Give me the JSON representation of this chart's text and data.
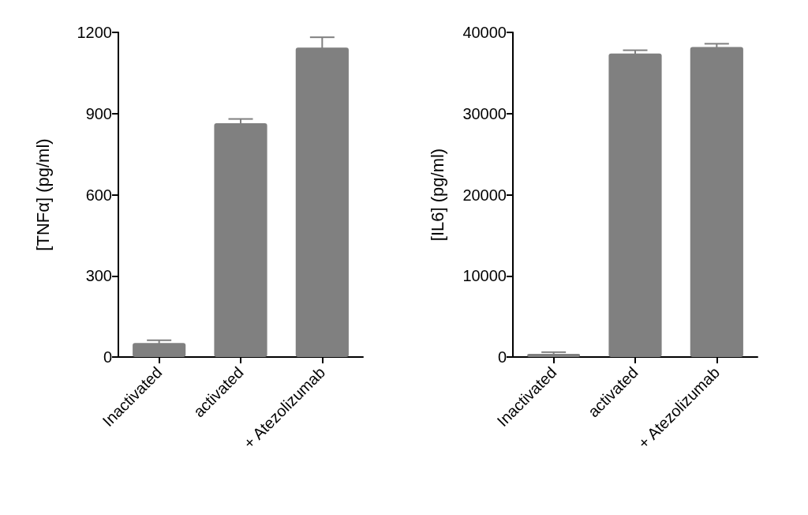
{
  "chart_data": [
    {
      "type": "bar",
      "ylabel": "[TNFα] (pg/ml)",
      "categories": [
        "Inactivated",
        "activated",
        "+ Atezolizumab"
      ],
      "values": [
        52,
        864,
        1144
      ],
      "errors": [
        10,
        16,
        38
      ],
      "color": "#808080",
      "ylim": [
        0,
        1200
      ],
      "yticks": [
        0,
        300,
        600,
        900,
        1200
      ]
    },
    {
      "type": "bar",
      "ylabel": "[IL6] (pg/ml)",
      "categories": [
        "Inactivated",
        "activated",
        "+ Atezolizumab"
      ],
      "values": [
        400,
        37400,
        38200
      ],
      "errors": [
        200,
        400,
        400
      ],
      "color": "#808080",
      "ylim": [
        0,
        40000
      ],
      "yticks": [
        0,
        10000,
        20000,
        30000,
        40000
      ]
    }
  ]
}
